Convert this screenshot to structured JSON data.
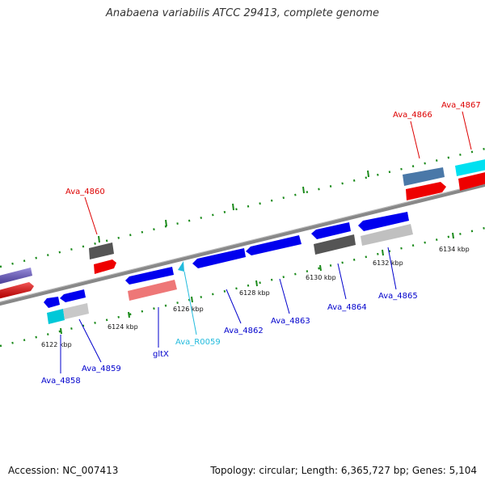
{
  "title": "Anabaena variabilis ATCC 29413, complete genome",
  "footer": {
    "accession": "Accession: NC_007413",
    "summary": "Topology: circular; Length: 6,365,727 bp; Genes: 5,104"
  },
  "scale_labels": [
    "6122 kbp",
    "6124 kbp",
    "6126 kbp",
    "6128 kbp",
    "6130 kbp",
    "6132 kbp",
    "6134 kbp"
  ],
  "gene_labels": [
    {
      "text": "Ava_4858",
      "color": "#0000cc"
    },
    {
      "text": "Ava_4859",
      "color": "#0000cc"
    },
    {
      "text": "gltX",
      "color": "#0000cc"
    },
    {
      "text": "Ava_R0059",
      "color": "#22bbdd"
    },
    {
      "text": "Ava_4862",
      "color": "#0000cc"
    },
    {
      "text": "Ava_4863",
      "color": "#0000cc"
    },
    {
      "text": "Ava_4864",
      "color": "#0000cc"
    },
    {
      "text": "Ava_4865",
      "color": "#0000cc"
    },
    {
      "text": "Ava_4860",
      "color": "#dd0000"
    },
    {
      "text": "Ava_4866",
      "color": "#dd0000"
    },
    {
      "text": "Ava_4867",
      "color": "#dd0000"
    }
  ],
  "colors": {
    "backbone": "#888888",
    "tick": "#1a8a1a",
    "gene_blue": "#0000ee",
    "gene_red": "#ee0000"
  }
}
